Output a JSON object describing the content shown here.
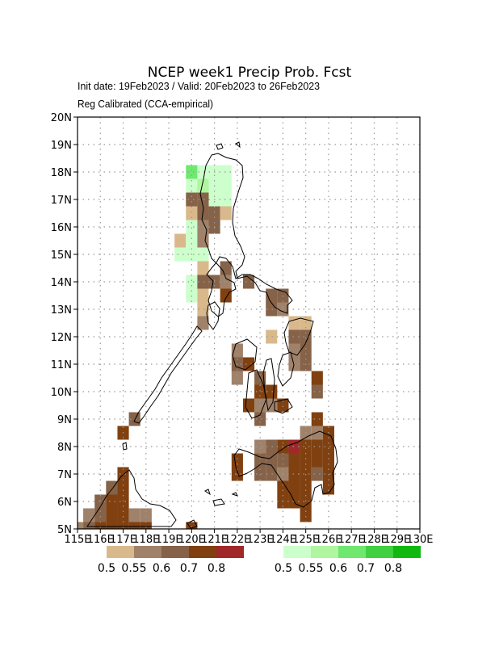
{
  "header": {
    "title": "NCEP week1 Precip Prob. Fcst",
    "subtitle1": "Init date: 19Feb2023 / Valid: 20Feb2023 to 26Feb2023",
    "subtitle2": "Reg Calibrated (CCA-empirical)"
  },
  "chart_data": {
    "type": "heatmap",
    "title": "NCEP week1 Precip Prob. Fcst",
    "xlim": [
      115,
      130
    ],
    "ylim": [
      5,
      20
    ],
    "grid": true,
    "cell_size_deg": 0.5,
    "x_tick_labels": [
      "115E",
      "116E",
      "117E",
      "118E",
      "119E",
      "120E",
      "121E",
      "122E",
      "123E",
      "124E",
      "125E",
      "126E",
      "127E",
      "128E",
      "129E",
      "130E"
    ],
    "y_tick_labels": [
      "5N",
      "6N",
      "7N",
      "8N",
      "9N",
      "10N",
      "11N",
      "12N",
      "13N",
      "14N",
      "15N",
      "16N",
      "17N",
      "18N",
      "19N",
      "20N"
    ],
    "legend_below": {
      "below_normal_label_values": [
        "0.5",
        "0.55",
        "0.6",
        "0.7",
        "0.8"
      ],
      "above_normal_label_values": [
        "0.5",
        "0.55",
        "0.6",
        "0.7",
        "0.8"
      ]
    },
    "colors": {
      "below": [
        "#d9b98c",
        "#a0826a",
        "#856248",
        "#804010",
        "#a02828"
      ],
      "above": [
        "#ccffcc",
        "#b0f5a0",
        "#70e870",
        "#40d040",
        "#10b810"
      ]
    },
    "cells": [
      {
        "lon": 120.0,
        "lat": 18.0,
        "v": "a2"
      },
      {
        "lon": 120.5,
        "lat": 18.0,
        "v": "a0"
      },
      {
        "lon": 121.0,
        "lat": 18.0,
        "v": "a0"
      },
      {
        "lon": 121.5,
        "lat": 18.0,
        "v": "a0"
      },
      {
        "lon": 120.0,
        "lat": 17.5,
        "v": "a0"
      },
      {
        "lon": 120.5,
        "lat": 17.5,
        "v": "a1"
      },
      {
        "lon": 121.0,
        "lat": 17.5,
        "v": "a0"
      },
      {
        "lon": 121.5,
        "lat": 17.5,
        "v": "a0"
      },
      {
        "lon": 120.0,
        "lat": 17.0,
        "v": "b2"
      },
      {
        "lon": 120.5,
        "lat": 17.0,
        "v": "b2"
      },
      {
        "lon": 121.0,
        "lat": 17.0,
        "v": "a0"
      },
      {
        "lon": 121.5,
        "lat": 17.0,
        "v": "a0"
      },
      {
        "lon": 120.0,
        "lat": 16.5,
        "v": "b0"
      },
      {
        "lon": 120.5,
        "lat": 16.5,
        "v": "b2"
      },
      {
        "lon": 121.0,
        "lat": 16.5,
        "v": "b2"
      },
      {
        "lon": 121.5,
        "lat": 16.5,
        "v": "b0"
      },
      {
        "lon": 120.0,
        "lat": 16.0,
        "v": "a0"
      },
      {
        "lon": 120.5,
        "lat": 16.0,
        "v": "b1"
      },
      {
        "lon": 121.0,
        "lat": 16.0,
        "v": "b2"
      },
      {
        "lon": 119.5,
        "lat": 15.5,
        "v": "b0"
      },
      {
        "lon": 120.0,
        "lat": 15.5,
        "v": "a0"
      },
      {
        "lon": 120.5,
        "lat": 15.5,
        "v": "b1"
      },
      {
        "lon": 119.5,
        "lat": 15.0,
        "v": "a0"
      },
      {
        "lon": 120.0,
        "lat": 15.0,
        "v": "a0"
      },
      {
        "lon": 120.5,
        "lat": 15.0,
        "v": "a0"
      },
      {
        "lon": 120.5,
        "lat": 14.5,
        "v": "b0"
      },
      {
        "lon": 121.5,
        "lat": 14.5,
        "v": "b2"
      },
      {
        "lon": 120.0,
        "lat": 14.0,
        "v": "a0"
      },
      {
        "lon": 120.5,
        "lat": 14.0,
        "v": "b2"
      },
      {
        "lon": 121.0,
        "lat": 14.0,
        "v": "b2"
      },
      {
        "lon": 121.5,
        "lat": 14.0,
        "v": "b1"
      },
      {
        "lon": 122.5,
        "lat": 14.0,
        "v": "b2"
      },
      {
        "lon": 120.5,
        "lat": 13.5,
        "v": "b0"
      },
      {
        "lon": 121.5,
        "lat": 13.5,
        "v": "b3"
      },
      {
        "lon": 123.5,
        "lat": 13.5,
        "v": "b2"
      },
      {
        "lon": 124.0,
        "lat": 13.5,
        "v": "b2"
      },
      {
        "lon": 120.0,
        "lat": 13.5,
        "v": "a0"
      },
      {
        "lon": 120.5,
        "lat": 13.0,
        "v": "b0"
      },
      {
        "lon": 123.5,
        "lat": 13.0,
        "v": "b2"
      },
      {
        "lon": 124.0,
        "lat": 13.0,
        "v": "b1"
      },
      {
        "lon": 120.5,
        "lat": 12.5,
        "v": "b1"
      },
      {
        "lon": 124.5,
        "lat": 12.5,
        "v": "b0"
      },
      {
        "lon": 125.0,
        "lat": 12.5,
        "v": "b0"
      },
      {
        "lon": 123.5,
        "lat": 12.0,
        "v": "b0"
      },
      {
        "lon": 124.5,
        "lat": 12.0,
        "v": "b2"
      },
      {
        "lon": 125.0,
        "lat": 12.0,
        "v": "b2"
      },
      {
        "lon": 122.0,
        "lat": 11.5,
        "v": "b1"
      },
      {
        "lon": 124.5,
        "lat": 11.5,
        "v": "b1"
      },
      {
        "lon": 125.0,
        "lat": 11.5,
        "v": "b2"
      },
      {
        "lon": 122.0,
        "lat": 11.0,
        "v": "b2"
      },
      {
        "lon": 122.5,
        "lat": 11.0,
        "v": "b3"
      },
      {
        "lon": 124.5,
        "lat": 11.0,
        "v": "b1"
      },
      {
        "lon": 125.0,
        "lat": 11.0,
        "v": "b2"
      },
      {
        "lon": 122.0,
        "lat": 10.5,
        "v": "b1"
      },
      {
        "lon": 123.0,
        "lat": 10.5,
        "v": "b2"
      },
      {
        "lon": 125.5,
        "lat": 10.5,
        "v": "b3"
      },
      {
        "lon": 123.0,
        "lat": 10.0,
        "v": "b3"
      },
      {
        "lon": 123.5,
        "lat": 10.0,
        "v": "b3"
      },
      {
        "lon": 125.5,
        "lat": 10.0,
        "v": "b2"
      },
      {
        "lon": 122.5,
        "lat": 9.5,
        "v": "b3"
      },
      {
        "lon": 123.0,
        "lat": 9.5,
        "v": "b1"
      },
      {
        "lon": 123.5,
        "lat": 9.5,
        "v": "b1"
      },
      {
        "lon": 124.0,
        "lat": 9.5,
        "v": "b3"
      },
      {
        "lon": 123.0,
        "lat": 9.0,
        "v": "b2"
      },
      {
        "lon": 125.5,
        "lat": 9.0,
        "v": "b3"
      },
      {
        "lon": 117.5,
        "lat": 9.0,
        "v": "b2"
      },
      {
        "lon": 117.0,
        "lat": 8.5,
        "v": "b3"
      },
      {
        "lon": 125.0,
        "lat": 8.5,
        "v": "b1"
      },
      {
        "lon": 125.5,
        "lat": 8.5,
        "v": "b1"
      },
      {
        "lon": 126.0,
        "lat": 8.5,
        "v": "b3"
      },
      {
        "lon": 123.0,
        "lat": 8.0,
        "v": "b1"
      },
      {
        "lon": 123.5,
        "lat": 8.0,
        "v": "b2"
      },
      {
        "lon": 124.0,
        "lat": 8.0,
        "v": "b3"
      },
      {
        "lon": 124.5,
        "lat": 8.0,
        "v": "b4"
      },
      {
        "lon": 125.0,
        "lat": 8.0,
        "v": "b3"
      },
      {
        "lon": 125.5,
        "lat": 8.0,
        "v": "b3"
      },
      {
        "lon": 126.0,
        "lat": 8.0,
        "v": "b3"
      },
      {
        "lon": 122.0,
        "lat": 7.5,
        "v": "b3"
      },
      {
        "lon": 123.0,
        "lat": 7.5,
        "v": "b2"
      },
      {
        "lon": 123.5,
        "lat": 7.5,
        "v": "b2"
      },
      {
        "lon": 124.0,
        "lat": 7.5,
        "v": "b2"
      },
      {
        "lon": 124.5,
        "lat": 7.5,
        "v": "b3"
      },
      {
        "lon": 125.0,
        "lat": 7.5,
        "v": "b3"
      },
      {
        "lon": 125.5,
        "lat": 7.5,
        "v": "b3"
      },
      {
        "lon": 126.0,
        "lat": 7.5,
        "v": "b3"
      },
      {
        "lon": 122.0,
        "lat": 7.0,
        "v": "b3"
      },
      {
        "lon": 123.0,
        "lat": 7.0,
        "v": "b2"
      },
      {
        "lon": 123.5,
        "lat": 7.0,
        "v": "b2"
      },
      {
        "lon": 124.0,
        "lat": 7.0,
        "v": "b1"
      },
      {
        "lon": 124.5,
        "lat": 7.0,
        "v": "b3"
      },
      {
        "lon": 125.0,
        "lat": 7.0,
        "v": "b3"
      },
      {
        "lon": 125.5,
        "lat": 7.0,
        "v": "b2"
      },
      {
        "lon": 126.0,
        "lat": 7.0,
        "v": "b3"
      },
      {
        "lon": 124.0,
        "lat": 6.5,
        "v": "b3"
      },
      {
        "lon": 124.5,
        "lat": 6.5,
        "v": "b3"
      },
      {
        "lon": 125.0,
        "lat": 6.5,
        "v": "b3"
      },
      {
        "lon": 126.0,
        "lat": 6.5,
        "v": "b3"
      },
      {
        "lon": 124.0,
        "lat": 6.0,
        "v": "b3"
      },
      {
        "lon": 124.5,
        "lat": 6.0,
        "v": "b3"
      },
      {
        "lon": 125.0,
        "lat": 6.0,
        "v": "b3"
      },
      {
        "lon": 125.0,
        "lat": 5.5,
        "v": "b3"
      },
      {
        "lon": 117.0,
        "lat": 7.0,
        "v": "b3"
      },
      {
        "lon": 116.5,
        "lat": 6.5,
        "v": "b2"
      },
      {
        "lon": 117.0,
        "lat": 6.5,
        "v": "b3"
      },
      {
        "lon": 116.0,
        "lat": 6.0,
        "v": "b2"
      },
      {
        "lon": 116.5,
        "lat": 6.0,
        "v": "b3"
      },
      {
        "lon": 117.0,
        "lat": 6.0,
        "v": "b3"
      },
      {
        "lon": 115.5,
        "lat": 5.5,
        "v": "b1"
      },
      {
        "lon": 116.0,
        "lat": 5.5,
        "v": "b2"
      },
      {
        "lon": 116.5,
        "lat": 5.5,
        "v": "b3"
      },
      {
        "lon": 117.0,
        "lat": 5.5,
        "v": "b3"
      },
      {
        "lon": 117.5,
        "lat": 5.5,
        "v": "b1"
      },
      {
        "lon": 118.0,
        "lat": 5.5,
        "v": "b1"
      },
      {
        "lon": 115.0,
        "lat": 5.0,
        "v": "b1"
      },
      {
        "lon": 115.5,
        "lat": 5.0,
        "v": "b2"
      },
      {
        "lon": 116.0,
        "lat": 5.0,
        "v": "b3"
      },
      {
        "lon": 116.5,
        "lat": 5.0,
        "v": "b3"
      },
      {
        "lon": 117.0,
        "lat": 5.0,
        "v": "b3"
      },
      {
        "lon": 117.5,
        "lat": 5.0,
        "v": "b3"
      },
      {
        "lon": 118.0,
        "lat": 5.0,
        "v": "b3"
      },
      {
        "lon": 120.0,
        "lat": 5.0,
        "v": "b3"
      }
    ]
  }
}
